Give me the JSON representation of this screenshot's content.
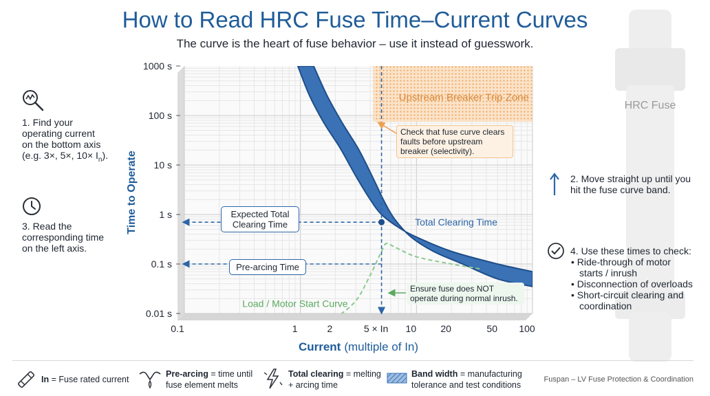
{
  "title": "How to Read HRC Fuse Time–Current Curves",
  "subtitle": "The curve is the heart of fuse behavior – use it instead of guesswork.",
  "steps": {
    "step1": {
      "line1": "1. Find your",
      "line2": "operating current",
      "line3": "on the bottom axis",
      "line4": "(e.g. 3×, 5×, 10× I",
      "sub": "n",
      "tail": ")."
    },
    "step2": {
      "line1": "2. Move straight up until you",
      "line2": "hit the fuse curve band."
    },
    "step3": {
      "line1": "3. Read the",
      "line2": "corresponding time",
      "line3": "on the left axis."
    },
    "step4": {
      "line1": "4. Use these times to check:",
      "bullets": [
        "Ride-through of motor",
        "starts / inrush",
        "Disconnection of overloads",
        "Short-circuit clearing and",
        "coordination"
      ]
    }
  },
  "fuse_label": "HRC Fuse",
  "chart_data": {
    "type": "line",
    "xlabel_bold": "Current",
    "xlabel_rest": "(multiple of In)",
    "ylabel": "Time to Operate",
    "x_scale": "log",
    "y_scale": "log",
    "xlim": [
      0.1,
      100
    ],
    "ylim": [
      0.01,
      1000
    ],
    "x_ticks": [
      {
        "value": 0.1,
        "label": "0.1"
      },
      {
        "value": 1,
        "label": "1"
      },
      {
        "value": 2,
        "label": "2"
      },
      {
        "value": 5,
        "label": "5 × In"
      },
      {
        "value": 10,
        "label": "10"
      },
      {
        "value": 20,
        "label": "20"
      },
      {
        "value": 50,
        "label": "50"
      },
      {
        "value": 100,
        "label": "100"
      }
    ],
    "y_ticks": [
      {
        "value": 1000,
        "label": "1000 s"
      },
      {
        "value": 100,
        "label": "100 s"
      },
      {
        "value": 10,
        "label": "10 s"
      },
      {
        "value": 1,
        "label": "1 s"
      },
      {
        "value": 0.1,
        "label": "0.1 s"
      },
      {
        "value": 0.01,
        "label": "0.01 s"
      }
    ],
    "grid": true,
    "band": {
      "name": "Total Clearing Time",
      "upper": [
        [
          0.95,
          1000
        ],
        [
          1.2,
          250
        ],
        [
          1.6,
          70
        ],
        [
          2.2,
          22
        ],
        [
          3.0,
          6
        ],
        [
          4.0,
          2.0
        ],
        [
          5.0,
          1.0
        ],
        [
          7.0,
          0.55
        ],
        [
          10,
          0.35
        ],
        [
          20,
          0.18
        ],
        [
          50,
          0.1
        ],
        [
          100,
          0.07
        ]
      ],
      "lower": [
        [
          1.3,
          1000
        ],
        [
          1.7,
          250
        ],
        [
          2.3,
          70
        ],
        [
          3.2,
          20
        ],
        [
          4.3,
          5
        ],
        [
          5.3,
          1.8
        ],
        [
          6.5,
          0.8
        ],
        [
          9,
          0.35
        ],
        [
          14,
          0.18
        ],
        [
          25,
          0.1
        ],
        [
          50,
          0.05
        ],
        [
          100,
          0.035
        ]
      ]
    },
    "load_curve": {
      "name": "Load / Motor Start Curve",
      "points": [
        [
          2.0,
          0.008
        ],
        [
          3.0,
          0.018
        ],
        [
          4.0,
          0.06
        ],
        [
          5.0,
          0.18
        ],
        [
          5.5,
          0.26
        ],
        [
          6.5,
          0.22
        ],
        [
          10,
          0.14
        ],
        [
          20,
          0.1
        ],
        [
          35,
          0.08
        ]
      ]
    },
    "operating_point": {
      "x": 5,
      "y": 0.7
    },
    "upstream_zone": {
      "label": "Upstream Breaker Trip Zone",
      "x": [
        5.0,
        100
      ],
      "y": [
        75,
        1000
      ]
    },
    "annotations": {
      "expected_total": {
        "line1": "Expected Total",
        "line2": "Clearing Time",
        "y": 0.7
      },
      "pre_arcing": {
        "label": "Pre-arcing Time",
        "y": 0.1
      },
      "selectivity": {
        "line1": "Check that fuse curve clears",
        "line2": "faults before upstream",
        "line3": "breaker (selectivity)."
      },
      "inrush": {
        "line1": "Ensure fuse does NOT",
        "line2": "operate during normal inrush."
      }
    },
    "colors": {
      "band": "#3a72b5",
      "band_edge": "#1e4e8a",
      "load_curve": "#8cc98f",
      "zone": "#f6c89a",
      "dashed": "#2c66a8",
      "label_green": "#5aa960"
    }
  },
  "legend": {
    "in": {
      "bold": "In",
      "rest": " = Fuse rated current"
    },
    "pre_arcing": {
      "bold": "Pre-arcing",
      "rest": " = time until",
      "line2": "fuse element melts"
    },
    "total_clearing": {
      "bold": "Total clearing",
      "rest": " = melting",
      "line2": "+ arcing time"
    },
    "band_width": {
      "bold": "Band width",
      "rest": " = manufacturing",
      "line2": "tolerance and test conditions"
    },
    "credit": "Fuspan – LV Fuse Protection & Coordination"
  }
}
